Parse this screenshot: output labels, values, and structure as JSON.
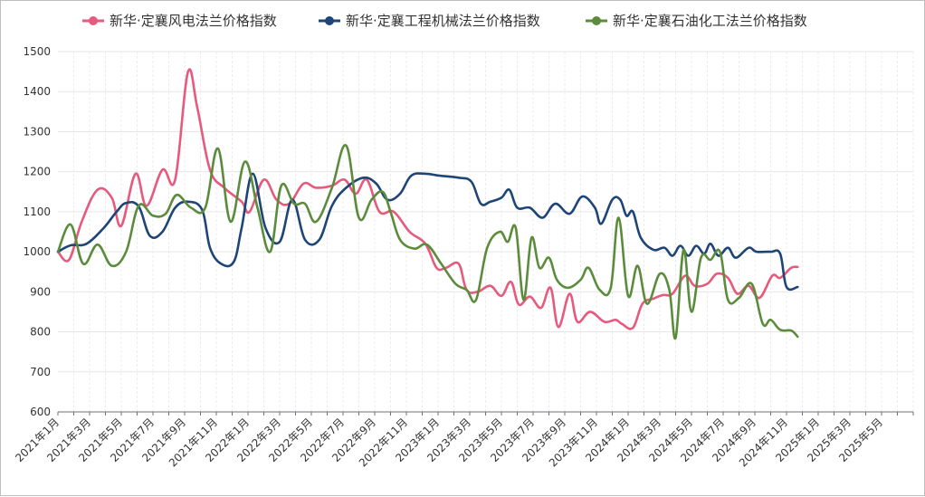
{
  "chart_data": {
    "type": "line",
    "title": "",
    "xlabel": "",
    "ylabel": "",
    "ylim": [
      600,
      1500
    ],
    "yticks": [
      600,
      700,
      800,
      900,
      1000,
      1100,
      1200,
      1300,
      1400,
      1500
    ],
    "xlim": [
      0,
      54
    ],
    "x_tick_labels": [
      "2021年1月",
      "2021年3月",
      "2021年5月",
      "2021年7月",
      "2021年9月",
      "2021年11月",
      "2022年1月",
      "2022年3月",
      "2022年5月",
      "2022年7月",
      "2022年9月",
      "2022年11月",
      "2023年1月",
      "2023年3月",
      "2023年5月",
      "2023年7月",
      "2023年9月",
      "2023年11月",
      "2024年1月",
      "2024年3月",
      "2024年5月",
      "2024年7月",
      "2024年9月",
      "2024年11月",
      "2025年1月",
      "2025年3月",
      "2025年5月"
    ],
    "x_tick_step": 2,
    "grid": true,
    "legend_position": "top",
    "series": [
      {
        "name": "新华·定襄风电法兰价格指数",
        "color": "#e55a7d",
        "points": [
          [
            0,
            1000
          ],
          [
            0.7,
            980
          ],
          [
            1.5,
            1075
          ],
          [
            2.5,
            1155
          ],
          [
            3.4,
            1135
          ],
          [
            4,
            1065
          ],
          [
            4.9,
            1195
          ],
          [
            5.6,
            1115
          ],
          [
            6.6,
            1205
          ],
          [
            7.4,
            1180
          ],
          [
            8.2,
            1448
          ],
          [
            8.8,
            1360
          ],
          [
            9.6,
            1205
          ],
          [
            10.5,
            1160
          ],
          [
            11.6,
            1125
          ],
          [
            12.1,
            1100
          ],
          [
            13,
            1180
          ],
          [
            13.8,
            1130
          ],
          [
            14.6,
            1120
          ],
          [
            15.5,
            1170
          ],
          [
            16.3,
            1160
          ],
          [
            17.3,
            1165
          ],
          [
            18.1,
            1180
          ],
          [
            18.8,
            1145
          ],
          [
            19.5,
            1180
          ],
          [
            20.3,
            1100
          ],
          [
            21.2,
            1100
          ],
          [
            22.2,
            1050
          ],
          [
            23.2,
            1020
          ],
          [
            23.9,
            960
          ],
          [
            24.5,
            960
          ],
          [
            25.3,
            970
          ],
          [
            25.8,
            905
          ],
          [
            26.5,
            900
          ],
          [
            27.3,
            915
          ],
          [
            28,
            890
          ],
          [
            28.6,
            925
          ],
          [
            29.1,
            868
          ],
          [
            29.8,
            888
          ],
          [
            30.5,
            860
          ],
          [
            31.1,
            910
          ],
          [
            31.6,
            812
          ],
          [
            32.3,
            895
          ],
          [
            32.8,
            825
          ],
          [
            33.6,
            850
          ],
          [
            34.5,
            825
          ],
          [
            35.2,
            830
          ],
          [
            35.6,
            820
          ],
          [
            36.3,
            810
          ],
          [
            36.9,
            870
          ],
          [
            37.6,
            883
          ],
          [
            38.2,
            892
          ],
          [
            38.8,
            895
          ],
          [
            39.6,
            940
          ],
          [
            40.2,
            915
          ],
          [
            41,
            920
          ],
          [
            41.6,
            945
          ],
          [
            42.3,
            935
          ],
          [
            42.9,
            895
          ],
          [
            43.6,
            915
          ],
          [
            44.3,
            885
          ],
          [
            45.1,
            940
          ],
          [
            45.6,
            935
          ],
          [
            46.3,
            960
          ],
          [
            46.7,
            962
          ]
        ]
      },
      {
        "name": "新华·定襄工程机械法兰价格指数",
        "color": "#1f4577",
        "points": [
          [
            0,
            1000
          ],
          [
            0.8,
            1016
          ],
          [
            1.8,
            1020
          ],
          [
            2.9,
            1060
          ],
          [
            3.7,
            1100
          ],
          [
            4.3,
            1122
          ],
          [
            5.1,
            1113
          ],
          [
            5.8,
            1040
          ],
          [
            6.6,
            1050
          ],
          [
            7.4,
            1110
          ],
          [
            8.2,
            1125
          ],
          [
            9.1,
            1105
          ],
          [
            9.6,
            1010
          ],
          [
            10.3,
            970
          ],
          [
            11.1,
            975
          ],
          [
            11.6,
            1060
          ],
          [
            12.3,
            1195
          ],
          [
            13.1,
            1060
          ],
          [
            14,
            1025
          ],
          [
            14.8,
            1130
          ],
          [
            15.6,
            1030
          ],
          [
            16.5,
            1030
          ],
          [
            17.3,
            1115
          ],
          [
            18.2,
            1160
          ],
          [
            19.3,
            1185
          ],
          [
            20.1,
            1170
          ],
          [
            20.8,
            1130
          ],
          [
            21.6,
            1145
          ],
          [
            22.3,
            1190
          ],
          [
            23.2,
            1195
          ],
          [
            24.1,
            1190
          ],
          [
            25.3,
            1185
          ],
          [
            26.1,
            1175
          ],
          [
            26.7,
            1120
          ],
          [
            27.3,
            1125
          ],
          [
            28,
            1135
          ],
          [
            28.5,
            1155
          ],
          [
            29,
            1110
          ],
          [
            29.8,
            1110
          ],
          [
            30.6,
            1085
          ],
          [
            31.4,
            1120
          ],
          [
            32.3,
            1095
          ],
          [
            33.1,
            1138
          ],
          [
            33.9,
            1110
          ],
          [
            34.3,
            1070
          ],
          [
            35,
            1130
          ],
          [
            35.5,
            1130
          ],
          [
            35.9,
            1090
          ],
          [
            36.3,
            1100
          ],
          [
            36.8,
            1035
          ],
          [
            37.6,
            1005
          ],
          [
            38.3,
            1010
          ],
          [
            38.8,
            990
          ],
          [
            39.3,
            1015
          ],
          [
            39.8,
            990
          ],
          [
            40.3,
            1015
          ],
          [
            40.8,
            995
          ],
          [
            41.2,
            1020
          ],
          [
            41.7,
            990
          ],
          [
            42.3,
            1010
          ],
          [
            42.8,
            985
          ],
          [
            43.6,
            1010
          ],
          [
            44.1,
            1000
          ],
          [
            45,
            1000
          ],
          [
            45.6,
            995
          ],
          [
            46,
            912
          ],
          [
            46.7,
            912
          ]
        ]
      },
      {
        "name": "新华·定襄石油化工法兰价格指数",
        "color": "#5b8c3c",
        "points": [
          [
            0,
            1000
          ],
          [
            0.8,
            1068
          ],
          [
            1.6,
            970
          ],
          [
            2.5,
            1018
          ],
          [
            3.4,
            965
          ],
          [
            4.3,
            1000
          ],
          [
            5.1,
            1115
          ],
          [
            6,
            1090
          ],
          [
            6.8,
            1095
          ],
          [
            7.5,
            1142
          ],
          [
            8.4,
            1110
          ],
          [
            9.3,
            1110
          ],
          [
            10.1,
            1258
          ],
          [
            10.9,
            1075
          ],
          [
            11.8,
            1225
          ],
          [
            12.6,
            1110
          ],
          [
            13.4,
            1000
          ],
          [
            14.1,
            1165
          ],
          [
            14.9,
            1120
          ],
          [
            15.6,
            1120
          ],
          [
            16.3,
            1075
          ],
          [
            17.3,
            1160
          ],
          [
            18.2,
            1265
          ],
          [
            19,
            1085
          ],
          [
            19.8,
            1130
          ],
          [
            20.5,
            1150
          ],
          [
            21,
            1100
          ],
          [
            21.6,
            1030
          ],
          [
            22.5,
            1008
          ],
          [
            23.3,
            1018
          ],
          [
            24.2,
            970
          ],
          [
            25.1,
            920
          ],
          [
            25.8,
            905
          ],
          [
            26.4,
            880
          ],
          [
            27.1,
            1010
          ],
          [
            27.9,
            1050
          ],
          [
            28.4,
            1025
          ],
          [
            28.9,
            1060
          ],
          [
            29.4,
            880
          ],
          [
            29.9,
            1035
          ],
          [
            30.4,
            960
          ],
          [
            31,
            985
          ],
          [
            31.5,
            930
          ],
          [
            32.2,
            910
          ],
          [
            33,
            930
          ],
          [
            33.5,
            960
          ],
          [
            34.2,
            905
          ],
          [
            34.9,
            910
          ],
          [
            35.4,
            1085
          ],
          [
            36,
            890
          ],
          [
            36.6,
            965
          ],
          [
            37.2,
            870
          ],
          [
            38,
            945
          ],
          [
            38.6,
            905
          ],
          [
            39,
            785
          ],
          [
            39.5,
            1005
          ],
          [
            40,
            850
          ],
          [
            40.6,
            985
          ],
          [
            41.2,
            980
          ],
          [
            41.8,
            1000
          ],
          [
            42.3,
            880
          ],
          [
            43,
            885
          ],
          [
            43.8,
            920
          ],
          [
            44.5,
            820
          ],
          [
            45,
            830
          ],
          [
            45.6,
            805
          ],
          [
            46.3,
            803
          ],
          [
            46.7,
            788
          ]
        ]
      }
    ]
  }
}
